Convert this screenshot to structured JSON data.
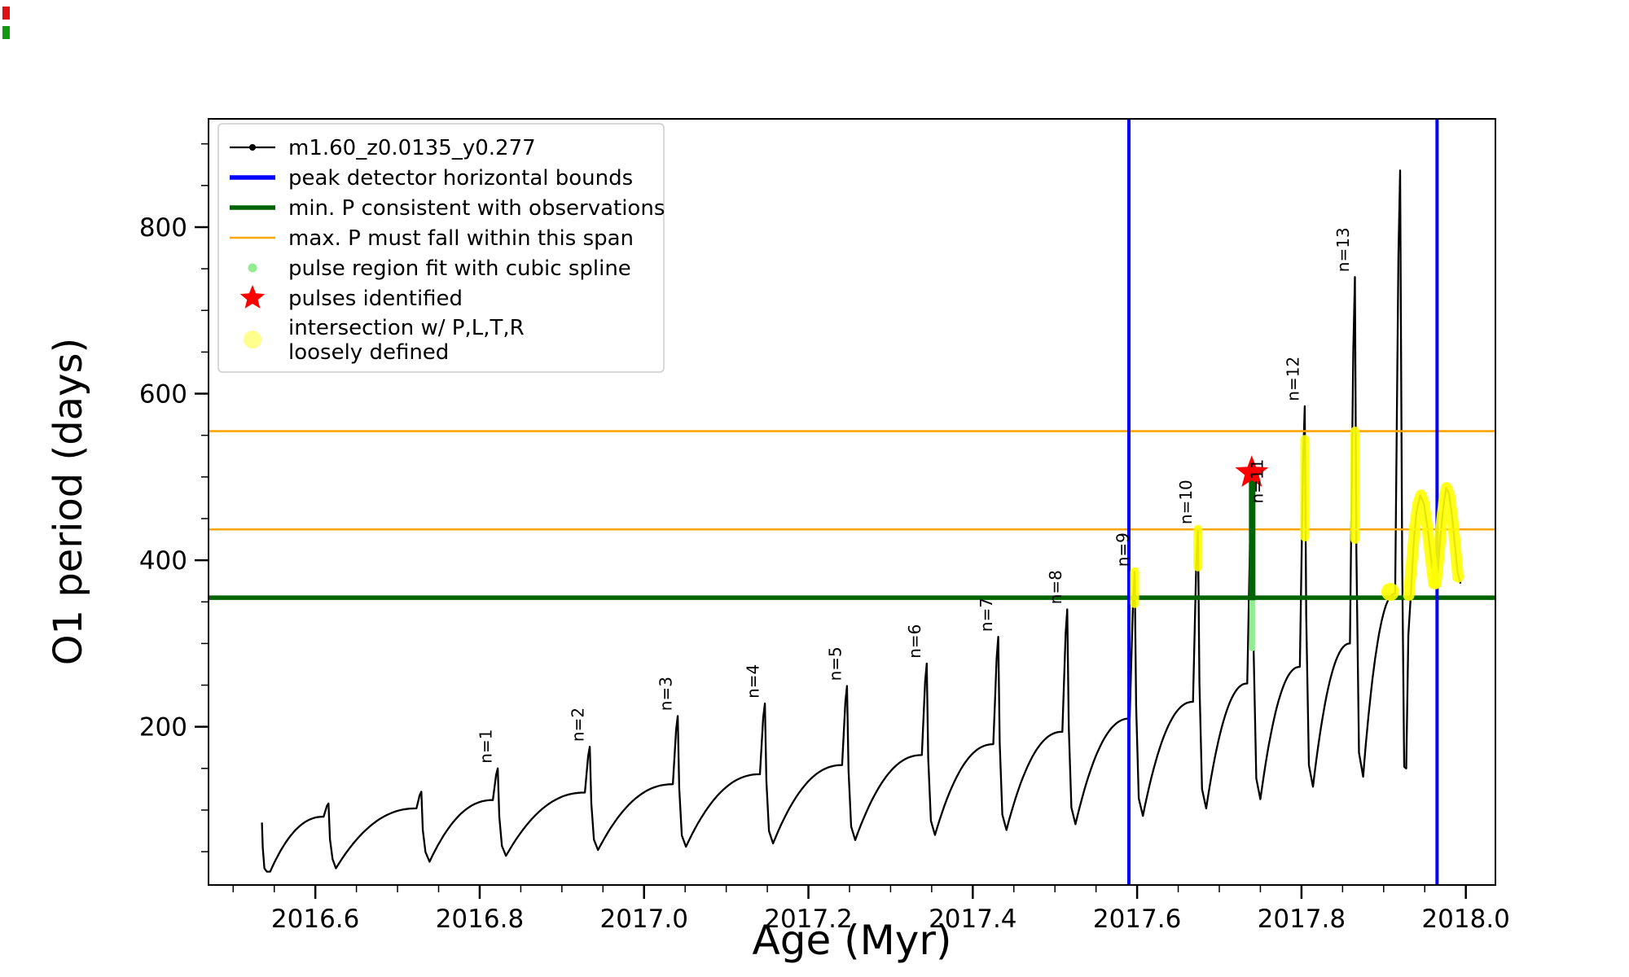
{
  "legend": {
    "entries": [
      {
        "label": "m1.60_z0.0135_y0.277",
        "type": "line-dot",
        "color": "#000000"
      },
      {
        "label": "peak detector horizontal bounds",
        "type": "line-thick",
        "color": "#0000ff"
      },
      {
        "label": "min. P consistent with observations",
        "type": "line-thick",
        "color": "#006400"
      },
      {
        "label": "max. P must fall within this span",
        "type": "line",
        "color": "#ffa500"
      },
      {
        "label": "pulse region fit with cubic spline",
        "type": "dot-small",
        "color": "#90ee90"
      },
      {
        "label": "pulses identified",
        "type": "star",
        "color": "#ff0000"
      },
      {
        "label": "intersection w/ P,L,T,R\nloosely defined",
        "type": "dot-large",
        "color": "#ffff00"
      }
    ]
  },
  "decorations": {
    "corner_marks": [
      {
        "name": "corner-mark-red",
        "color": "#dd1111"
      },
      {
        "name": "corner-mark-green",
        "color": "#119911"
      }
    ]
  },
  "chart_data": {
    "type": "line",
    "title": "",
    "xlabel": "Age (Myr)",
    "ylabel": "O1 period (days)",
    "xlim": [
      2016.47,
      2018.036
    ],
    "ylim": [
      10,
      930
    ],
    "x_ticks": [
      2016.6,
      2016.8,
      2017.0,
      2017.2,
      2017.4,
      2017.6,
      2017.8,
      2018.0
    ],
    "x_tick_labels": [
      "2016.6",
      "2016.8",
      "2017.0",
      "2017.2",
      "2017.4",
      "2017.6",
      "2017.8",
      "2018.0"
    ],
    "y_ticks": [
      200,
      400,
      600,
      800
    ],
    "y_tick_labels": [
      "200",
      "400",
      "600",
      "800"
    ],
    "x_minor_step": 0.05,
    "y_minor_step": 50,
    "series_name": "m1.60_z0.0135_y0.277",
    "series_color": "#000000",
    "head_points": [
      [
        2016.535,
        85
      ],
      [
        2016.536,
        55
      ],
      [
        2016.538,
        30
      ],
      [
        2016.541,
        26
      ]
    ],
    "cycles": [
      {
        "x_start": 2016.545,
        "y_min": 26,
        "x_peak": 2016.616,
        "y_plateau": 92,
        "y_peak": 108,
        "label": ""
      },
      {
        "x_start": 2016.625,
        "y_min": 30,
        "x_peak": 2016.729,
        "y_plateau": 102,
        "y_peak": 122,
        "label": ""
      },
      {
        "x_start": 2016.739,
        "y_min": 38,
        "x_peak": 2016.822,
        "y_plateau": 112,
        "y_peak": 150,
        "label": "n=1"
      },
      {
        "x_start": 2016.832,
        "y_min": 45,
        "x_peak": 2016.934,
        "y_plateau": 121,
        "y_peak": 176,
        "label": "n=2"
      },
      {
        "x_start": 2016.944,
        "y_min": 52,
        "x_peak": 2017.041,
        "y_plateau": 131,
        "y_peak": 213,
        "label": "n=3"
      },
      {
        "x_start": 2017.051,
        "y_min": 56,
        "x_peak": 2017.147,
        "y_plateau": 143,
        "y_peak": 228,
        "label": "n=4"
      },
      {
        "x_start": 2017.157,
        "y_min": 60,
        "x_peak": 2017.247,
        "y_plateau": 154,
        "y_peak": 249,
        "label": "n=5"
      },
      {
        "x_start": 2017.257,
        "y_min": 64,
        "x_peak": 2017.344,
        "y_plateau": 166,
        "y_peak": 276,
        "label": "n=6"
      },
      {
        "x_start": 2017.354,
        "y_min": 70,
        "x_peak": 2017.431,
        "y_plateau": 179,
        "y_peak": 308,
        "label": "n=7"
      },
      {
        "x_start": 2017.441,
        "y_min": 76,
        "x_peak": 2017.515,
        "y_plateau": 194,
        "y_peak": 341,
        "label": "n=8"
      },
      {
        "x_start": 2017.525,
        "y_min": 83,
        "x_peak": 2017.597,
        "y_plateau": 210,
        "y_peak": 386,
        "label": "n=9"
      },
      {
        "x_start": 2017.607,
        "y_min": 93,
        "x_peak": 2017.674,
        "y_plateau": 230,
        "y_peak": 437,
        "label": "n=10"
      },
      {
        "x_start": 2017.684,
        "y_min": 102,
        "x_peak": 2017.74,
        "y_plateau": 252,
        "y_peak": 505,
        "label": "n=11"
      },
      {
        "x_start": 2017.75,
        "y_min": 113,
        "x_peak": 2017.804,
        "y_plateau": 272,
        "y_peak": 585,
        "label": "n=12"
      },
      {
        "x_start": 2017.814,
        "y_min": 128,
        "x_peak": 2017.865,
        "y_plateau": 300,
        "y_peak": 740,
        "label": "n=13"
      },
      {
        "x_start": 2017.875,
        "y_min": 140,
        "x_peak": 2017.92,
        "y_plateau": 360,
        "y_peak": 868,
        "label": ""
      }
    ],
    "tail_points": [
      [
        2017.9225,
        400
      ],
      [
        2017.925,
        152
      ],
      [
        2017.9275,
        150
      ],
      [
        2017.93,
        310
      ],
      [
        2017.933,
        358
      ],
      [
        2017.9365,
        420
      ],
      [
        2017.94,
        458
      ],
      [
        2017.9445,
        478
      ],
      [
        2017.949,
        468
      ],
      [
        2017.9535,
        438
      ],
      [
        2017.958,
        400
      ],
      [
        2017.9615,
        372
      ],
      [
        2017.9625,
        368
      ],
      [
        2017.9655,
        382
      ],
      [
        2017.969,
        428
      ],
      [
        2017.9725,
        462
      ],
      [
        2017.976,
        487
      ],
      [
        2017.9795,
        480
      ],
      [
        2017.983,
        455
      ],
      [
        2017.9865,
        420
      ],
      [
        2017.99,
        385
      ],
      [
        2017.9935,
        372
      ]
    ],
    "vlines": {
      "label": "peak detector horizontal bounds",
      "color": "#0000ff",
      "x": [
        2017.59,
        2017.965
      ]
    },
    "hlines": [
      {
        "label": "min. P consistent with observations",
        "color": "#006400",
        "y": 355,
        "lw": 5.5
      },
      {
        "label": "max. P must fall within this span",
        "color": "#ffa500",
        "y": 437,
        "lw": 2.6
      },
      {
        "label": "max. P must fall within this span",
        "color": "#ffa500",
        "y": 555,
        "lw": 2.6
      }
    ],
    "spline_fit_segment": {
      "label": "pulse region fit with cubic spline",
      "color": "#90ee90",
      "x": 2017.74,
      "y_from": 294,
      "y_to": 352
    },
    "fit_bar": {
      "color": "#006400",
      "x": 2017.74,
      "y_from": 352,
      "y_to": 500
    },
    "pulse_star": {
      "label": "pulses identified",
      "color": "#ff0000",
      "x": 2017.7395,
      "y": 505
    },
    "yellow": {
      "label": "intersection w/ P,L,T,R loosely defined",
      "color": "#ffff00",
      "stems": [
        {
          "x": 2017.597,
          "y_from": 348,
          "y_to": 386
        },
        {
          "x": 2017.674,
          "y_from": 392,
          "y_to": 437
        },
        {
          "x": 2017.804,
          "y_from": 428,
          "y_to": 545
        },
        {
          "x": 2017.865,
          "y_from": 425,
          "y_to": 555
        }
      ],
      "dots": [
        {
          "x": 2017.908,
          "y": 362
        }
      ],
      "arcs": [
        [
          [
            2017.9305,
            358
          ],
          [
            2017.934,
            395
          ],
          [
            2017.938,
            440
          ],
          [
            2017.942,
            468
          ],
          [
            2017.9455,
            478
          ],
          [
            2017.949,
            468
          ],
          [
            2017.953,
            440
          ],
          [
            2017.957,
            405
          ],
          [
            2017.961,
            372
          ]
        ],
        [
          [
            2017.9635,
            372
          ],
          [
            2017.967,
            405
          ],
          [
            2017.9705,
            445
          ],
          [
            2017.974,
            475
          ],
          [
            2017.9765,
            487
          ],
          [
            2017.98,
            478
          ],
          [
            2017.9835,
            452
          ],
          [
            2017.987,
            418
          ],
          [
            2017.9905,
            380
          ]
        ]
      ]
    },
    "pulse_labels": [
      {
        "text": "n=1",
        "x": 2016.8145,
        "y": 156
      },
      {
        "text": "n=2",
        "x": 2016.9265,
        "y": 182
      },
      {
        "text": "n=3",
        "x": 2017.0335,
        "y": 219
      },
      {
        "text": "n=4",
        "x": 2017.1395,
        "y": 234
      },
      {
        "text": "n=5",
        "x": 2017.2395,
        "y": 255
      },
      {
        "text": "n=6",
        "x": 2017.3365,
        "y": 282
      },
      {
        "text": "n=7",
        "x": 2017.4235,
        "y": 314
      },
      {
        "text": "n=8",
        "x": 2017.5075,
        "y": 347
      },
      {
        "text": "n=9",
        "x": 2017.5895,
        "y": 392
      },
      {
        "text": "n=10",
        "x": 2017.6665,
        "y": 443
      },
      {
        "text": "n=11",
        "x": 2017.753,
        "y": 468
      },
      {
        "text": "n=12",
        "x": 2017.7965,
        "y": 591
      },
      {
        "text": "n=13",
        "x": 2017.8575,
        "y": 746
      }
    ]
  }
}
